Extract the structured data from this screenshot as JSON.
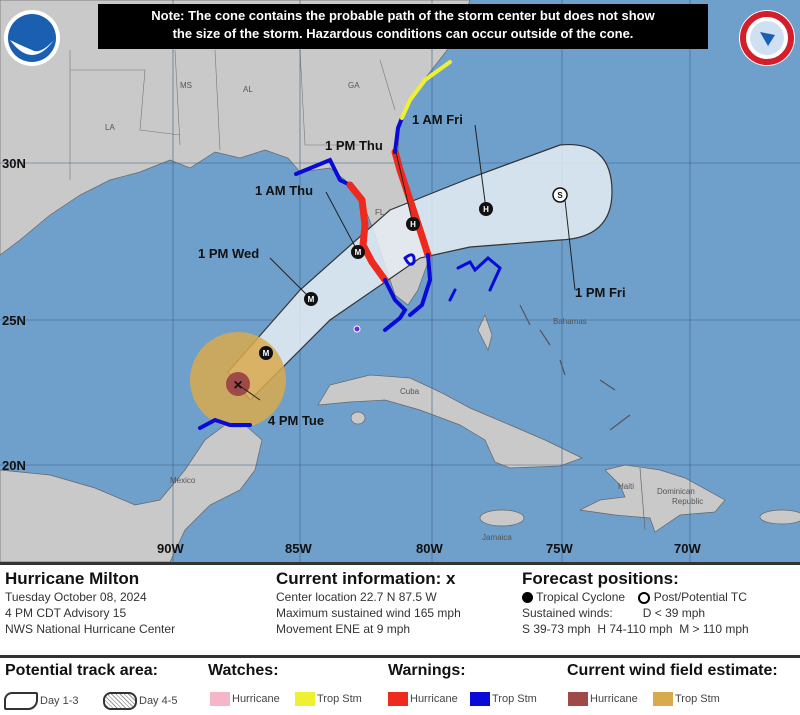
{
  "note": {
    "line1": "Note: The cone contains the probable path of the storm center but does not show",
    "line2": "the size of the storm. Hazardous conditions can occur outside of the cone."
  },
  "map": {
    "latitudes": [
      "30N",
      "25N",
      "20N"
    ],
    "longitudes": [
      "90W",
      "85W",
      "80W",
      "75W",
      "70W"
    ],
    "places": {
      "ms": "MS",
      "al": "AL",
      "ga": "GA",
      "la": "LA",
      "fl": "FL",
      "cuba": "Cuba",
      "bahamas": "Bahamas",
      "mexico": "Mexico",
      "haiti": "Haiti",
      "dr1": "Dominican",
      "dr2": "Republic",
      "jamaica": "Jamaica"
    },
    "forecast_labels": [
      "4 PM Tue",
      "1 PM Wed",
      "1 AM Thu",
      "1 PM Thu",
      "1 AM Fri",
      "1 PM Fri"
    ],
    "forecast_points": [
      {
        "time": "1 PM Wed",
        "category": "M"
      },
      {
        "time": "1 AM Thu",
        "category": "M"
      },
      {
        "time": "1 PM Thu",
        "category": "H"
      },
      {
        "time": "1 AM Fri",
        "category": "H"
      },
      {
        "time": "1 PM Fri",
        "category": "S",
        "type": "post-tropical"
      }
    ],
    "colors": {
      "ocean": "#6f9fcb",
      "land": "#c9c9c9",
      "cone": "#e6edf5",
      "hurricane_warning": "#ee2a1e",
      "ts_warning": "#0a0ad8",
      "ts_watch": "#f0f032",
      "hurricane_watch": "#f4b6c8",
      "wind_hurricane": "#9e4a48",
      "wind_ts": "#d9a94e"
    }
  },
  "info": {
    "storm_name": "Hurricane Milton",
    "date": "Tuesday October 08, 2024",
    "advisory": "4 PM CDT Advisory 15",
    "center": "NWS National Hurricane Center",
    "current_title": "Current information: x",
    "location": "Center location 22.7 N 87.5 W",
    "max_wind": "Maximum sustained wind 165 mph",
    "movement": "Movement ENE at 9 mph",
    "forecast_title": "Forecast positions:",
    "tc": "Tropical Cyclone",
    "post_tc": "Post/Potential TC",
    "sustained": "Sustained winds:",
    "d": "D < 39 mph",
    "scale": "S 39-73 mph  H 74-110 mph  M > 110 mph"
  },
  "legend": {
    "track_title": "Potential track area:",
    "day13": "Day 1-3",
    "day45": "Day 4-5",
    "watches_title": "Watches:",
    "warnings_title": "Warnings:",
    "wind_title": "Current wind field estimate:",
    "hurricane": "Hurricane",
    "trop_stm": "Trop Stm"
  }
}
